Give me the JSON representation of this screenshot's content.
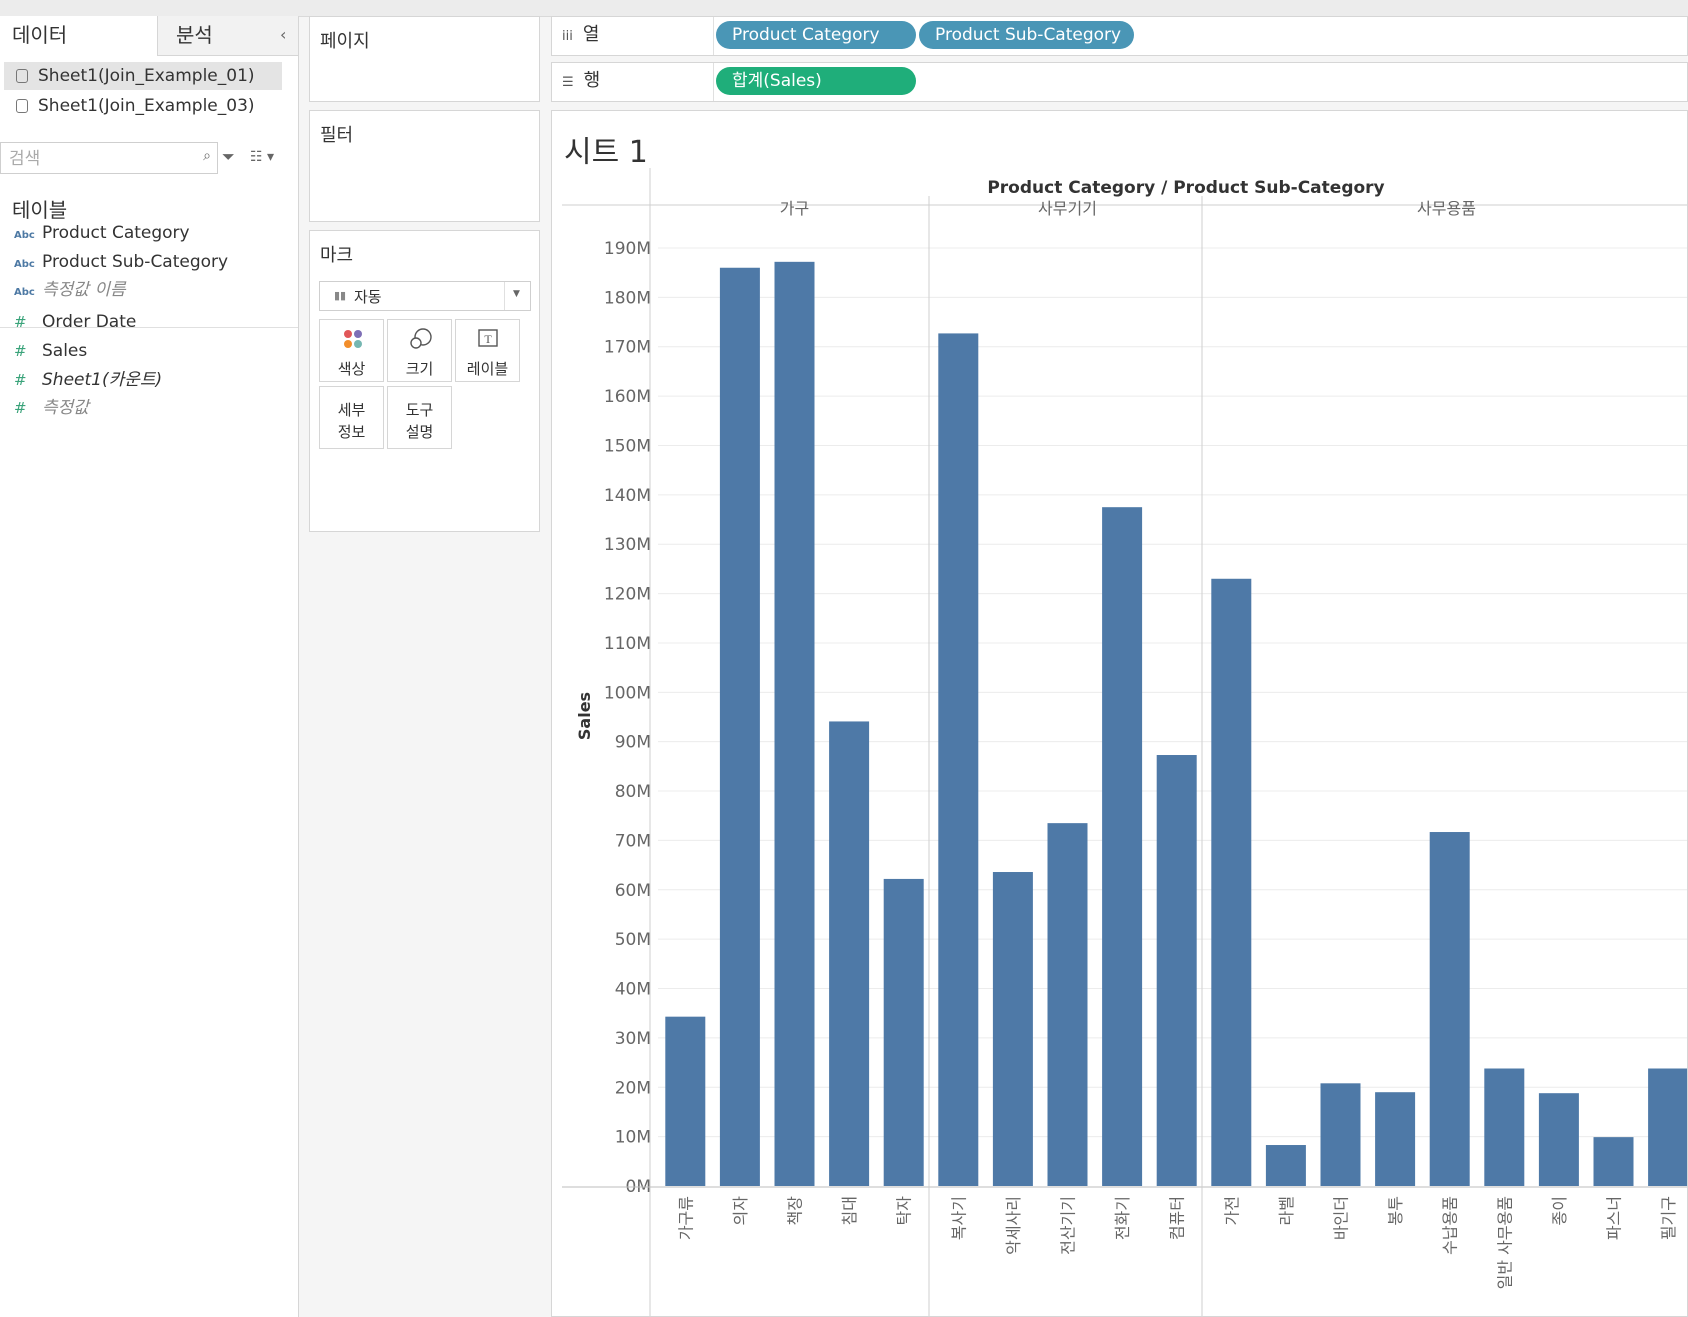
{
  "data_pane": {
    "tab_data": "데이터",
    "tab_analysis": "분석",
    "collapse": "‹",
    "sources": [
      "Sheet1(Join_Example_01)",
      "Sheet1(Join_Example_03)"
    ],
    "search_placeholder": "검색",
    "tables_heading": "테이블",
    "dimensions": [
      {
        "type": "Abc",
        "label": "Product Category"
      },
      {
        "type": "Abc",
        "label": "Product Sub-Category"
      },
      {
        "type": "Abc",
        "label": "측정값 이름"
      }
    ],
    "measures": [
      {
        "type": "#",
        "label": "Order Date"
      },
      {
        "type": "#",
        "label": "Sales"
      },
      {
        "type": "#",
        "label": "Sheet1(카운트)"
      },
      {
        "type": "#",
        "label": "측정값"
      }
    ]
  },
  "cards": {
    "pages": "페이지",
    "filters": "필터",
    "marks": "마크",
    "mark_type": "자동",
    "mark_buttons": {
      "color": "색상",
      "size": "크기",
      "label": "레이블",
      "detail_1": "세부",
      "detail_2": "정보",
      "tooltip_1": "도구",
      "tooltip_2": "설명"
    }
  },
  "shelves": {
    "columns_label": "열",
    "rows_label": "행",
    "columns_pills": [
      "Product Category",
      "Product Sub-Category"
    ],
    "rows_pills": [
      "합계(Sales)"
    ]
  },
  "colors": {
    "bar": "#4e79a7",
    "dimension_pill": "#4a96b6",
    "measure_pill": "#1fae7a"
  },
  "sheet_title": "시트 1",
  "chart_data": {
    "type": "bar",
    "header_title": "Product Category / Product Sub-Category",
    "ylabel": "Sales",
    "ylim": [
      0,
      190000000
    ],
    "yticks": [
      "0M",
      "10M",
      "20M",
      "30M",
      "40M",
      "50M",
      "60M",
      "70M",
      "80M",
      "90M",
      "100M",
      "110M",
      "120M",
      "130M",
      "140M",
      "150M",
      "160M",
      "170M",
      "180M",
      "190M"
    ],
    "groups": [
      {
        "name": "가구",
        "categories": [
          "가구류",
          "의자",
          "책장",
          "침대",
          "탁자"
        ],
        "values": [
          34300000,
          186000000,
          187200000,
          94100000,
          62200000
        ]
      },
      {
        "name": "사무기기",
        "categories": [
          "복사기",
          "악세사리",
          "전산기기",
          "전화기",
          "컴퓨터"
        ],
        "values": [
          172700000,
          63600000,
          73500000,
          137500000,
          87300000
        ]
      },
      {
        "name": "사무용품",
        "categories": [
          "가전",
          "라벨",
          "바인더",
          "봉투",
          "수납용품",
          "일반 사무용품",
          "종이",
          "파스너",
          "필기구"
        ],
        "values": [
          123000000,
          8300000,
          20800000,
          19000000,
          71700000,
          23800000,
          18800000,
          9900000,
          23800000
        ]
      }
    ]
  }
}
